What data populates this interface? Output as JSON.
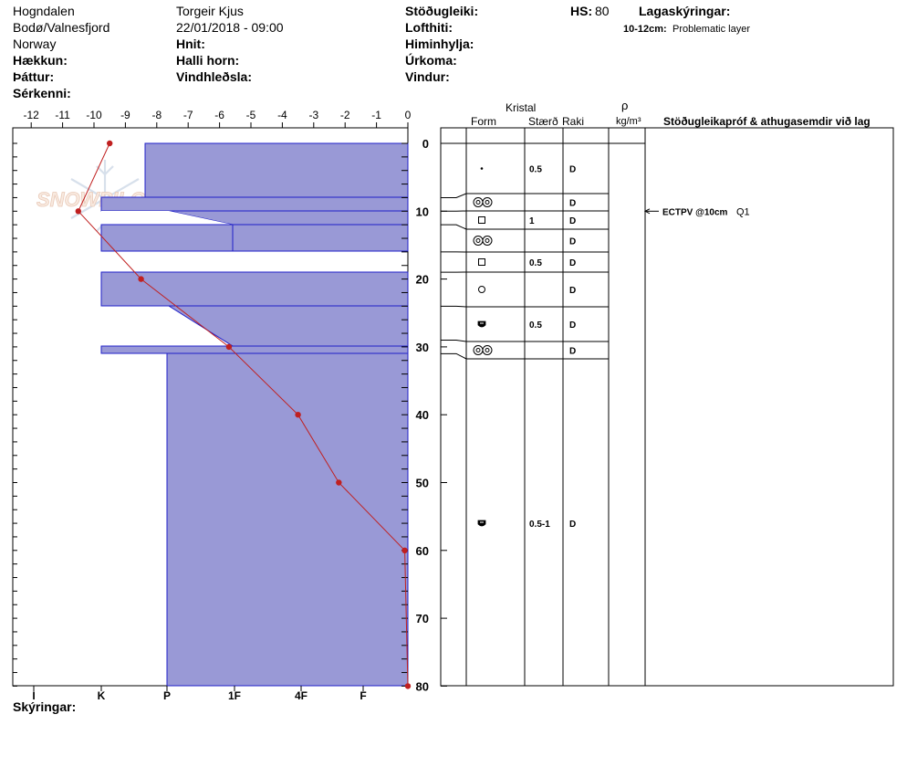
{
  "header": {
    "location": "Hogndalen",
    "region": "Bodø/Valnesfjord",
    "country": "Norway",
    "elevation_label": "Hækkun:",
    "aspect_label": "Þáttur:",
    "specifics_label": "Sérkenni:",
    "observer": "Torgeir Kjus",
    "datetime": "22/01/2018 - 09:00",
    "coords_label": "Hnit:",
    "slope_label": "Halli horn:",
    "wind_loading_label": "Vindhleðsla:",
    "stability_label": "Stöðugleiki:",
    "air_temp_label": "Lofthiti:",
    "sky_label": "Himinhylja:",
    "precip_label": "Úrkoma:",
    "wind_label": "Vindur:",
    "hs_label": "HS:",
    "hs_value": "80",
    "layer_notes_label": "Lagaskýringar:",
    "layer_note_range": "10-12cm:",
    "layer_note_text": "Problematic layer"
  },
  "logo": {
    "text": "SNOWPILOT"
  },
  "columns": {
    "crystal": "Kristal",
    "form": "Form",
    "size": "Stærð",
    "moisture": "Raki",
    "rho": "ρ",
    "density_unit": "kg/m³",
    "tests": "Stöðugleikapróf & athugasemdir við lag"
  },
  "footer": {
    "notes_label": "Skýringar:"
  },
  "colors": {
    "layer_fill": "#9999d6",
    "layer_stroke": "#1f1fc8",
    "temp_line": "#c02020"
  },
  "chart_data": {
    "type": "snow_profile",
    "temp_axis": {
      "ticks": [
        "-12",
        "-11",
        "-10",
        "-9",
        "-8",
        "-7",
        "-6",
        "-5",
        "-4",
        "-3",
        "-2",
        "-1",
        "0"
      ],
      "range": [
        -12,
        0
      ]
    },
    "depth_axis": {
      "ticks": [
        "0",
        "10",
        "20",
        "30",
        "40",
        "50",
        "60",
        "70",
        "80"
      ],
      "range": [
        0,
        80
      ]
    },
    "hardness_axis": {
      "ticks": [
        "I",
        "K",
        "P",
        "1F",
        "4F",
        "F"
      ]
    },
    "temperature_profile": [
      {
        "depth": 0,
        "temp": -9.5
      },
      {
        "depth": 10,
        "temp": -10.5
      },
      {
        "depth": 20,
        "temp": -8.5
      },
      {
        "depth": 30,
        "temp": -5.7
      },
      {
        "depth": 40,
        "temp": -3.5
      },
      {
        "depth": 50,
        "temp": -2.2
      },
      {
        "depth": 60,
        "temp": -0.1
      },
      {
        "depth": 80,
        "temp": 0
      }
    ],
    "layers": [
      {
        "top": 0,
        "bottom": 8,
        "form": "dot",
        "size": "0.5",
        "moisture": "D"
      },
      {
        "top": 8,
        "bottom": 10,
        "form": "double",
        "size": "",
        "moisture": "D"
      },
      {
        "top": 10,
        "bottom": 12,
        "form": "square",
        "size": "1",
        "moisture": "D"
      },
      {
        "top": 12,
        "bottom": 16,
        "form": "double",
        "size": "",
        "moisture": "D"
      },
      {
        "top": 16,
        "bottom": 19,
        "form": "square",
        "size": "0.5",
        "moisture": "D"
      },
      {
        "top": 19,
        "bottom": 24,
        "form": "circle",
        "size": "",
        "moisture": "D"
      },
      {
        "top": 24,
        "bottom": 29,
        "form": "cup",
        "size": "0.5",
        "moisture": "D"
      },
      {
        "top": 29,
        "bottom": 31,
        "form": "double",
        "size": "",
        "moisture": "D"
      },
      {
        "top": 31,
        "bottom": 80,
        "form": "cup",
        "size": "0.5-1",
        "moisture": "D"
      }
    ],
    "tests": [
      {
        "depth": 10,
        "label": "ECTPV @10cm",
        "quality": "Q1"
      }
    ]
  }
}
